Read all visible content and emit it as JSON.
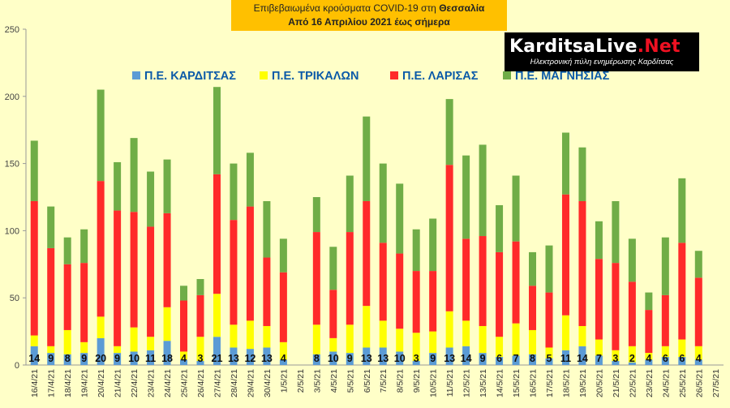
{
  "title_line1_prefix": "Επιβεβαιωμένα κρούσματα COVID-19 στη",
  "title_line1_region": "Θεσσαλία",
  "title_line2": "Από 16 Απριλίου 2021 έως σήμερα",
  "logo": {
    "brand_karditsa": "Karditsa",
    "brand_live": "Live",
    "brand_net": ".Net",
    "tagline": "Ηλεκτρονική πύλη ενημέρωσης Καρδίτσας"
  },
  "chart_data": {
    "type": "bar",
    "stacked": true,
    "grid": false,
    "legend_position": "top",
    "ylim": [
      0,
      250
    ],
    "yticks": [
      0,
      50,
      100,
      150,
      200,
      250
    ],
    "colors": {
      "karditsa": "#5B9BD5",
      "trikala": "#FFFF00",
      "larisa": "#FF2A2A",
      "magnisia": "#70AD47"
    },
    "categories": [
      "16/4/21",
      "17/4/21",
      "18/4/21",
      "19/4/21",
      "20/4/21",
      "21/4/21",
      "22/4/21",
      "23/4/21",
      "24/4/21",
      "25/4/21",
      "26/4/21",
      "27/4/21",
      "28/4/21",
      "29/4/21",
      "30/4/21",
      "1/5/21",
      "2/5/21",
      "3/5/21",
      "4/5/21",
      "5/5/21",
      "6/5/21",
      "7/5/21",
      "8/5/21",
      "9/5/21",
      "10/5/21",
      "11/5/21",
      "12/5/21",
      "13/5/21",
      "14/5/21",
      "15/5/21",
      "16/5/21",
      "17/5/21",
      "18/5/21",
      "19/5/21",
      "20/5/21",
      "21/5/21",
      "22/5/21",
      "23/5/21",
      "24/5/21",
      "25/5/21",
      "26/5/21",
      "27/5/21"
    ],
    "series": [
      {
        "name": "Π.Ε. ΚΑΡΔΙΤΣΑΣ",
        "key": "karditsa",
        "values": [
          14,
          9,
          8,
          9,
          20,
          9,
          10,
          11,
          18,
          4,
          3,
          21,
          13,
          12,
          13,
          4,
          null,
          8,
          10,
          9,
          13,
          13,
          10,
          3,
          9,
          13,
          14,
          9,
          6,
          7,
          8,
          5,
          11,
          14,
          7,
          3,
          2,
          4,
          6,
          6,
          4,
          null
        ]
      },
      {
        "name": "Π.Ε. ΤΡΙΚΑΛΩΝ",
        "key": "trikala",
        "values": [
          8,
          5,
          18,
          8,
          16,
          5,
          18,
          10,
          25,
          6,
          18,
          32,
          17,
          21,
          16,
          13,
          null,
          22,
          10,
          21,
          31,
          20,
          17,
          21,
          16,
          27,
          19,
          20,
          15,
          24,
          18,
          8,
          26,
          15,
          12,
          8,
          12,
          5,
          8,
          13,
          10,
          null
        ]
      },
      {
        "name": "Π.Ε. ΛΑΡΙΣΑΣ",
        "key": "larisa",
        "values": [
          100,
          73,
          49,
          59,
          101,
          101,
          86,
          82,
          70,
          38,
          31,
          89,
          78,
          85,
          51,
          52,
          null,
          69,
          36,
          69,
          78,
          58,
          56,
          46,
          45,
          109,
          61,
          67,
          63,
          61,
          33,
          41,
          90,
          93,
          60,
          65,
          48,
          32,
          38,
          72,
          51,
          null
        ]
      },
      {
        "name": "Π.Ε. ΜΑΓΝΗΣΙΑΣ",
        "key": "magnisia",
        "values": [
          45,
          31,
          20,
          25,
          68,
          36,
          55,
          41,
          40,
          11,
          12,
          65,
          42,
          40,
          42,
          25,
          null,
          26,
          32,
          42,
          63,
          59,
          52,
          31,
          39,
          49,
          62,
          68,
          35,
          49,
          25,
          35,
          46,
          40,
          28,
          46,
          32,
          13,
          43,
          48,
          20,
          null
        ]
      }
    ],
    "data_labels": [
      14,
      9,
      8,
      9,
      20,
      9,
      10,
      11,
      18,
      4,
      3,
      21,
      13,
      12,
      13,
      4,
      null,
      8,
      10,
      9,
      13,
      13,
      10,
      3,
      9,
      13,
      14,
      9,
      6,
      7,
      8,
      5,
      11,
      14,
      7,
      3,
      2,
      4,
      6,
      6,
      4,
      null
    ]
  }
}
